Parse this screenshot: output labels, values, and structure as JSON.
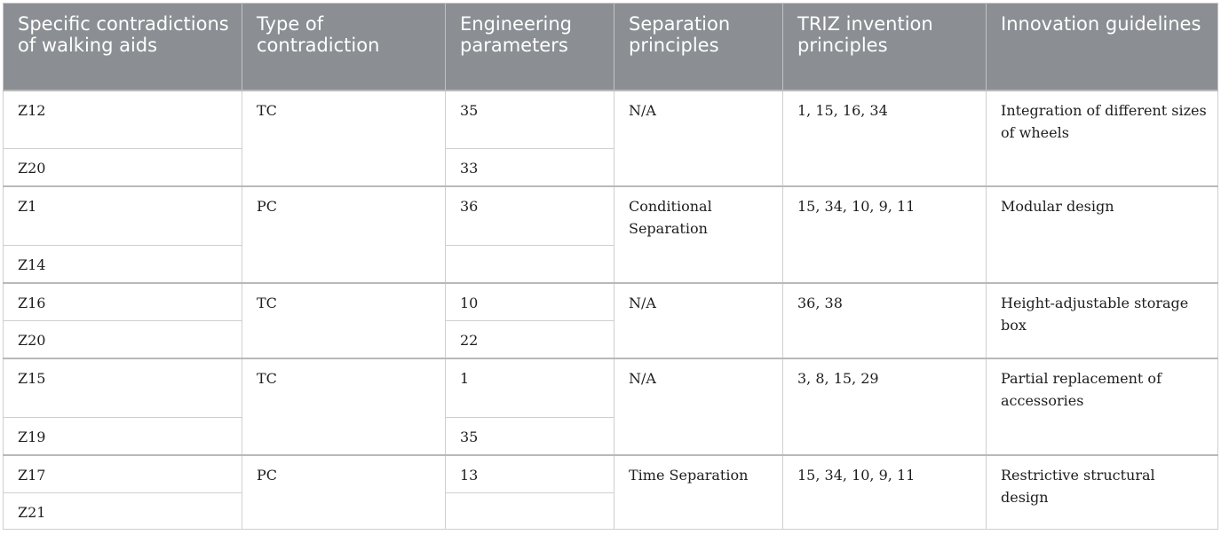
{
  "headers": [
    "Specific contradictions of walking aids",
    "Type of contradiction",
    "Engineering parameters",
    "Separation principles",
    "TRIZ invention principles",
    "Innovation guidelines"
  ],
  "groups": [
    {
      "rows": [
        {
          "contradiction": "Z12",
          "parameter": "35"
        },
        {
          "contradiction": "Z20",
          "parameter": "33"
        }
      ],
      "type": "TC",
      "separation": "N/A",
      "triz": "1, 15, 16, 34",
      "guideline": "Integration of different sizes of wheels"
    },
    {
      "rows": [
        {
          "contradiction": "Z1",
          "parameter": "36"
        },
        {
          "contradiction": "Z14",
          "parameter": ""
        }
      ],
      "type": "PC",
      "separation": "Conditional Separation",
      "triz": "15, 34, 10, 9, 11",
      "guideline": "Modular design"
    },
    {
      "rows": [
        {
          "contradiction": "Z16",
          "parameter": "10"
        },
        {
          "contradiction": "Z20",
          "parameter": "22"
        }
      ],
      "type": "TC",
      "separation": "N/A",
      "triz": "36, 38",
      "guideline": "Height-adjustable storage box"
    },
    {
      "rows": [
        {
          "contradiction": "Z15",
          "parameter": "1"
        },
        {
          "contradiction": "Z19",
          "parameter": "35"
        }
      ],
      "type": "TC",
      "separation": "N/A",
      "triz": "3, 8, 15, 29",
      "guideline": "Partial replacement of accessories"
    },
    {
      "rows": [
        {
          "contradiction": "Z17",
          "parameter": "13"
        },
        {
          "contradiction": "Z21",
          "parameter": ""
        }
      ],
      "type": "PC",
      "separation": "Time Separation",
      "triz": "15, 34, 10, 9, 11",
      "guideline": "Restrictive structural design"
    }
  ]
}
